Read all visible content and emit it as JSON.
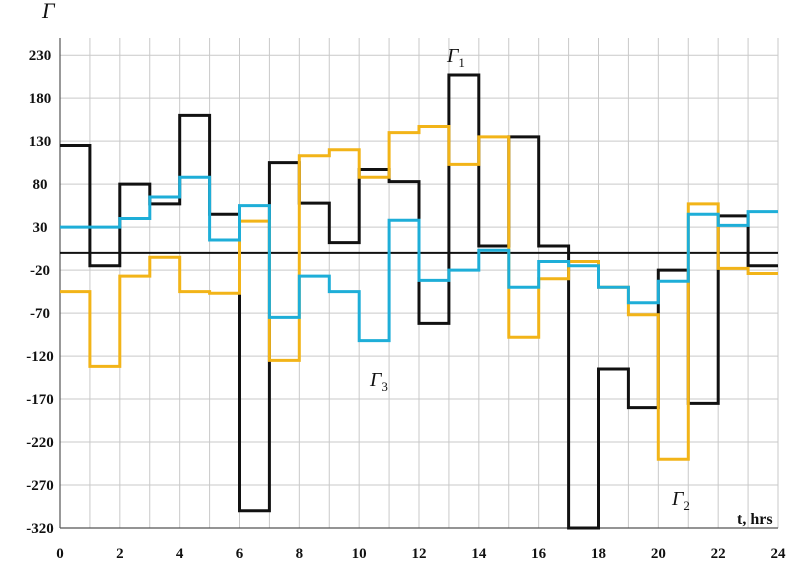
{
  "chart_data": {
    "type": "line",
    "step": true,
    "xlabel": "t, hrs",
    "ylabel": "Г",
    "xlim": [
      0,
      24
    ],
    "ylim": [
      -320,
      250
    ],
    "x_ticks": [
      0,
      2,
      4,
      6,
      8,
      10,
      12,
      14,
      16,
      18,
      20,
      22,
      24
    ],
    "y_ticks": [
      230,
      180,
      130,
      80,
      30,
      -20,
      -70,
      -120,
      -170,
      -220,
      -270,
      -320
    ],
    "grid": true,
    "zero_line": 0,
    "series": [
      {
        "name": "Г1",
        "color": "#111111",
        "values": [
          125,
          -15,
          80,
          57,
          160,
          45,
          -300,
          105,
          58,
          12,
          97,
          83,
          -82,
          207,
          8,
          135,
          8,
          -320,
          -135,
          -180,
          -20,
          -175,
          43,
          -15
        ]
      },
      {
        "name": "Г2",
        "color": "#f2b418",
        "values": [
          -45,
          -132,
          -27,
          -5,
          -45,
          -47,
          37,
          -125,
          113,
          120,
          88,
          140,
          147,
          103,
          135,
          -98,
          -30,
          -10,
          -40,
          -72,
          -240,
          57,
          -18,
          -24
        ]
      },
      {
        "name": "Г3",
        "color": "#1eaed8",
        "values": [
          30,
          30,
          40,
          65,
          88,
          15,
          55,
          -75,
          -27,
          -45,
          -102,
          38,
          -32,
          -20,
          3,
          -40,
          -10,
          -15,
          -40,
          -58,
          -33,
          45,
          32,
          48
        ]
      }
    ],
    "labels": {
      "g1_main": "Г",
      "g1_sub": "1",
      "g2_main": "Г",
      "g2_sub": "2",
      "g3_main": "Г",
      "g3_sub": "3"
    }
  }
}
